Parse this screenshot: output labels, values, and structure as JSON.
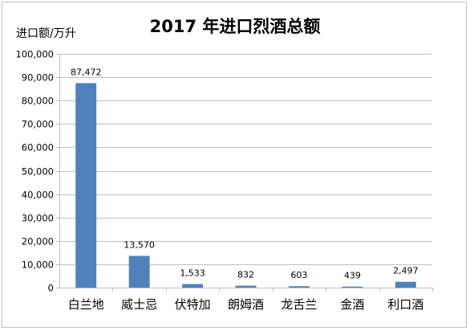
{
  "chart_data": {
    "type": "bar",
    "title": "2017 年进口烈酒总额",
    "ylabel": "进口额/万升",
    "xlabel": "",
    "categories": [
      "白兰地",
      "威士忌",
      "伏特加",
      "朗姆酒",
      "龙舌兰",
      "金酒",
      "利口酒"
    ],
    "values": [
      87472,
      13570,
      1533,
      832,
      603,
      439,
      2497
    ],
    "value_labels": [
      "87,472",
      "13,570",
      "1,533",
      "832",
      "603",
      "439",
      "2,497"
    ],
    "ylim": [
      0,
      100000
    ],
    "yticks": [
      0,
      10000,
      20000,
      30000,
      40000,
      50000,
      60000,
      70000,
      80000,
      90000,
      100000
    ],
    "ytick_labels": [
      "0",
      "10,000",
      "20,000",
      "30,000",
      "40,000",
      "50,000",
      "60,000",
      "70,000",
      "80,000",
      "90,000",
      "100,000"
    ],
    "grid": true,
    "legend": "none",
    "bar_color": "#4f81bd"
  }
}
